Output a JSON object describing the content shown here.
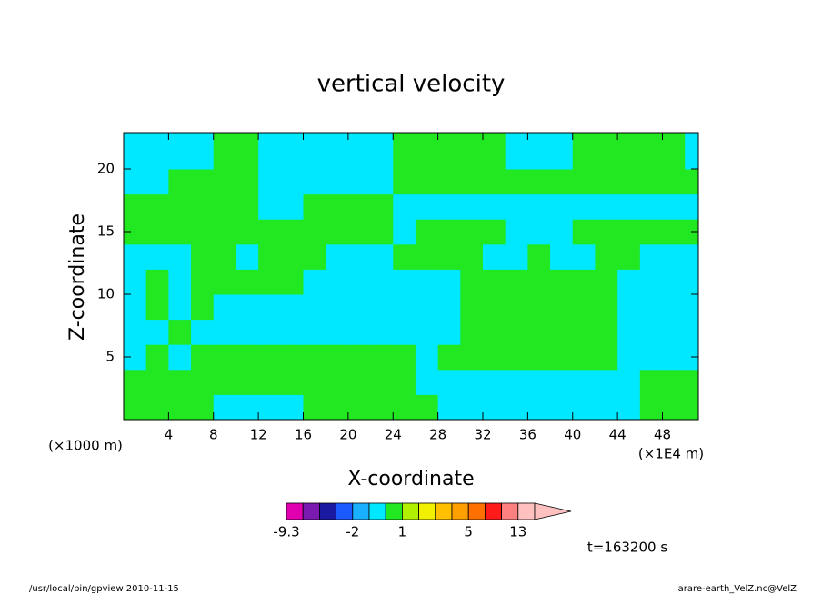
{
  "chart_data": {
    "type": "contour",
    "title": "vertical velocity",
    "x_label": "X-coordinate",
    "y_label": "Z-coordinate",
    "x_unit_label": "(×1E4 m)",
    "y_unit_label": "(×1000 m)",
    "time_label": "t=163200 s",
    "footer_left": "/usr/local/bin/gpview   2010-11-15",
    "footer_right": "arare-earth_VelZ.nc@VelZ",
    "xlim": [
      0,
      51.2
    ],
    "ylim": [
      0,
      22.9
    ],
    "xticks": [
      4,
      8,
      12,
      16,
      20,
      24,
      28,
      32,
      36,
      40,
      44,
      48
    ],
    "yticks": [
      5,
      10,
      15,
      20
    ],
    "x": [
      1,
      3,
      5,
      7,
      9,
      11,
      13,
      15,
      17,
      19,
      21,
      23,
      25,
      27,
      29,
      31,
      33,
      35,
      37,
      39,
      41,
      43,
      45,
      47,
      49,
      51
    ],
    "y": [
      1,
      3,
      5,
      7,
      9,
      11,
      13,
      15,
      17,
      19,
      21,
      23
    ],
    "z": [
      [
        0.5,
        0.5,
        0.5,
        0.5,
        -0.5,
        -0.5,
        -0.5,
        -0.5,
        0.5,
        0.5,
        0.5,
        0.5,
        0.5,
        0.5,
        -0.5,
        -0.5,
        -0.5,
        -0.5,
        -0.5,
        -0.5,
        -0.5,
        -0.5,
        -0.5,
        0.5,
        0.5,
        0.5
      ],
      [
        0.5,
        0.5,
        0.5,
        0.5,
        0.5,
        0.5,
        0.5,
        0.5,
        0.5,
        0.5,
        0.5,
        0.5,
        0.5,
        -0.5,
        -0.5,
        -0.5,
        -0.5,
        -0.5,
        -0.5,
        -0.5,
        -0.5,
        -0.5,
        -0.5,
        0.5,
        0.5,
        0.5
      ],
      [
        -0.5,
        0.5,
        -0.5,
        0.5,
        0.5,
        0.5,
        0.5,
        0.5,
        0.5,
        0.5,
        0.5,
        0.5,
        0.5,
        -0.5,
        0.5,
        0.5,
        0.5,
        0.5,
        0.5,
        0.5,
        0.5,
        0.5,
        -0.5,
        -0.5,
        -0.5,
        -0.5
      ],
      [
        -0.5,
        -0.5,
        0.5,
        -0.5,
        -0.5,
        -0.5,
        -0.5,
        -0.5,
        -0.5,
        -0.5,
        -0.5,
        -0.5,
        -0.5,
        -0.5,
        -0.5,
        0.5,
        0.5,
        0.5,
        0.5,
        0.5,
        0.5,
        0.5,
        -0.5,
        -0.5,
        -0.5,
        -0.5
      ],
      [
        -0.5,
        0.5,
        -0.5,
        0.5,
        -0.5,
        -0.5,
        -0.5,
        -0.5,
        -0.5,
        -0.5,
        -0.5,
        -0.5,
        -0.5,
        -0.5,
        -0.5,
        0.5,
        0.5,
        0.5,
        0.5,
        0.5,
        0.5,
        0.5,
        -0.5,
        -0.5,
        -0.5,
        -0.5
      ],
      [
        -0.5,
        0.5,
        -0.5,
        0.5,
        0.5,
        0.5,
        0.5,
        0.5,
        -0.5,
        -0.5,
        -0.5,
        -0.5,
        -0.5,
        -0.5,
        -0.5,
        0.5,
        0.5,
        0.5,
        0.5,
        0.5,
        0.5,
        0.5,
        -0.5,
        -0.5,
        -0.5,
        -0.5
      ],
      [
        -0.5,
        -0.5,
        -0.5,
        0.5,
        0.5,
        -0.5,
        0.5,
        0.5,
        0.5,
        -0.5,
        -0.5,
        -0.5,
        0.5,
        0.5,
        0.5,
        0.5,
        -0.5,
        -0.5,
        0.5,
        -0.5,
        -0.5,
        0.5,
        0.5,
        -0.5,
        -0.5,
        -0.5
      ],
      [
        0.5,
        0.5,
        0.5,
        0.5,
        0.5,
        0.5,
        0.5,
        0.5,
        0.5,
        0.5,
        0.5,
        0.5,
        -0.5,
        0.5,
        0.5,
        0.5,
        0.5,
        -0.5,
        -0.5,
        -0.5,
        0.5,
        0.5,
        0.5,
        0.5,
        0.5,
        0.5
      ],
      [
        0.5,
        0.5,
        0.5,
        0.5,
        0.5,
        0.5,
        -0.5,
        -0.5,
        0.5,
        0.5,
        0.5,
        0.5,
        -0.5,
        -0.5,
        -0.5,
        -0.5,
        -0.5,
        -0.5,
        -0.5,
        -0.5,
        -0.5,
        -0.5,
        -0.5,
        -0.5,
        -0.5,
        -0.5
      ],
      [
        -0.5,
        -0.5,
        0.5,
        0.5,
        0.5,
        0.5,
        -0.5,
        -0.5,
        -0.5,
        -0.5,
        -0.5,
        -0.5,
        0.5,
        0.5,
        0.5,
        0.5,
        0.5,
        0.5,
        0.5,
        0.5,
        0.5,
        0.5,
        0.5,
        0.5,
        0.5,
        0.5
      ],
      [
        -0.5,
        -0.5,
        -0.5,
        -0.5,
        0.5,
        0.5,
        -0.5,
        -0.5,
        -0.5,
        -0.5,
        -0.5,
        -0.5,
        0.5,
        0.5,
        0.5,
        0.5,
        0.5,
        -0.5,
        -0.5,
        -0.5,
        0.5,
        0.5,
        0.5,
        0.5,
        0.5,
        -0.5
      ],
      [
        -0.5,
        -0.5,
        -0.5,
        -0.5,
        0.5,
        0.5,
        -0.5,
        -0.5,
        -0.5,
        -0.5,
        -0.5,
        -0.5,
        0.5,
        0.5,
        0.5,
        0.5,
        0.5,
        -0.5,
        -0.5,
        -0.5,
        0.5,
        0.5,
        0.5,
        0.5,
        0.5,
        -0.5
      ]
    ],
    "colorbar": {
      "levels": [
        -9.3,
        -7,
        -5,
        -3,
        -2,
        -1,
        0,
        1,
        2,
        3,
        4,
        5,
        7,
        10,
        13,
        20
      ],
      "colors": [
        "#e000b0",
        "#7a1ab0",
        "#1a1aa0",
        "#1a5aff",
        "#19b0ff",
        "#00e8ff",
        "#22e822",
        "#b0f000",
        "#f0f000",
        "#ffc000",
        "#ffa000",
        "#ff7000",
        "#ff1a1a",
        "#ff8080",
        "#ffc0c0"
      ],
      "extend_color": "#ffc0c0",
      "ticks": [
        -9.3,
        -2,
        1,
        5,
        13
      ]
    }
  }
}
